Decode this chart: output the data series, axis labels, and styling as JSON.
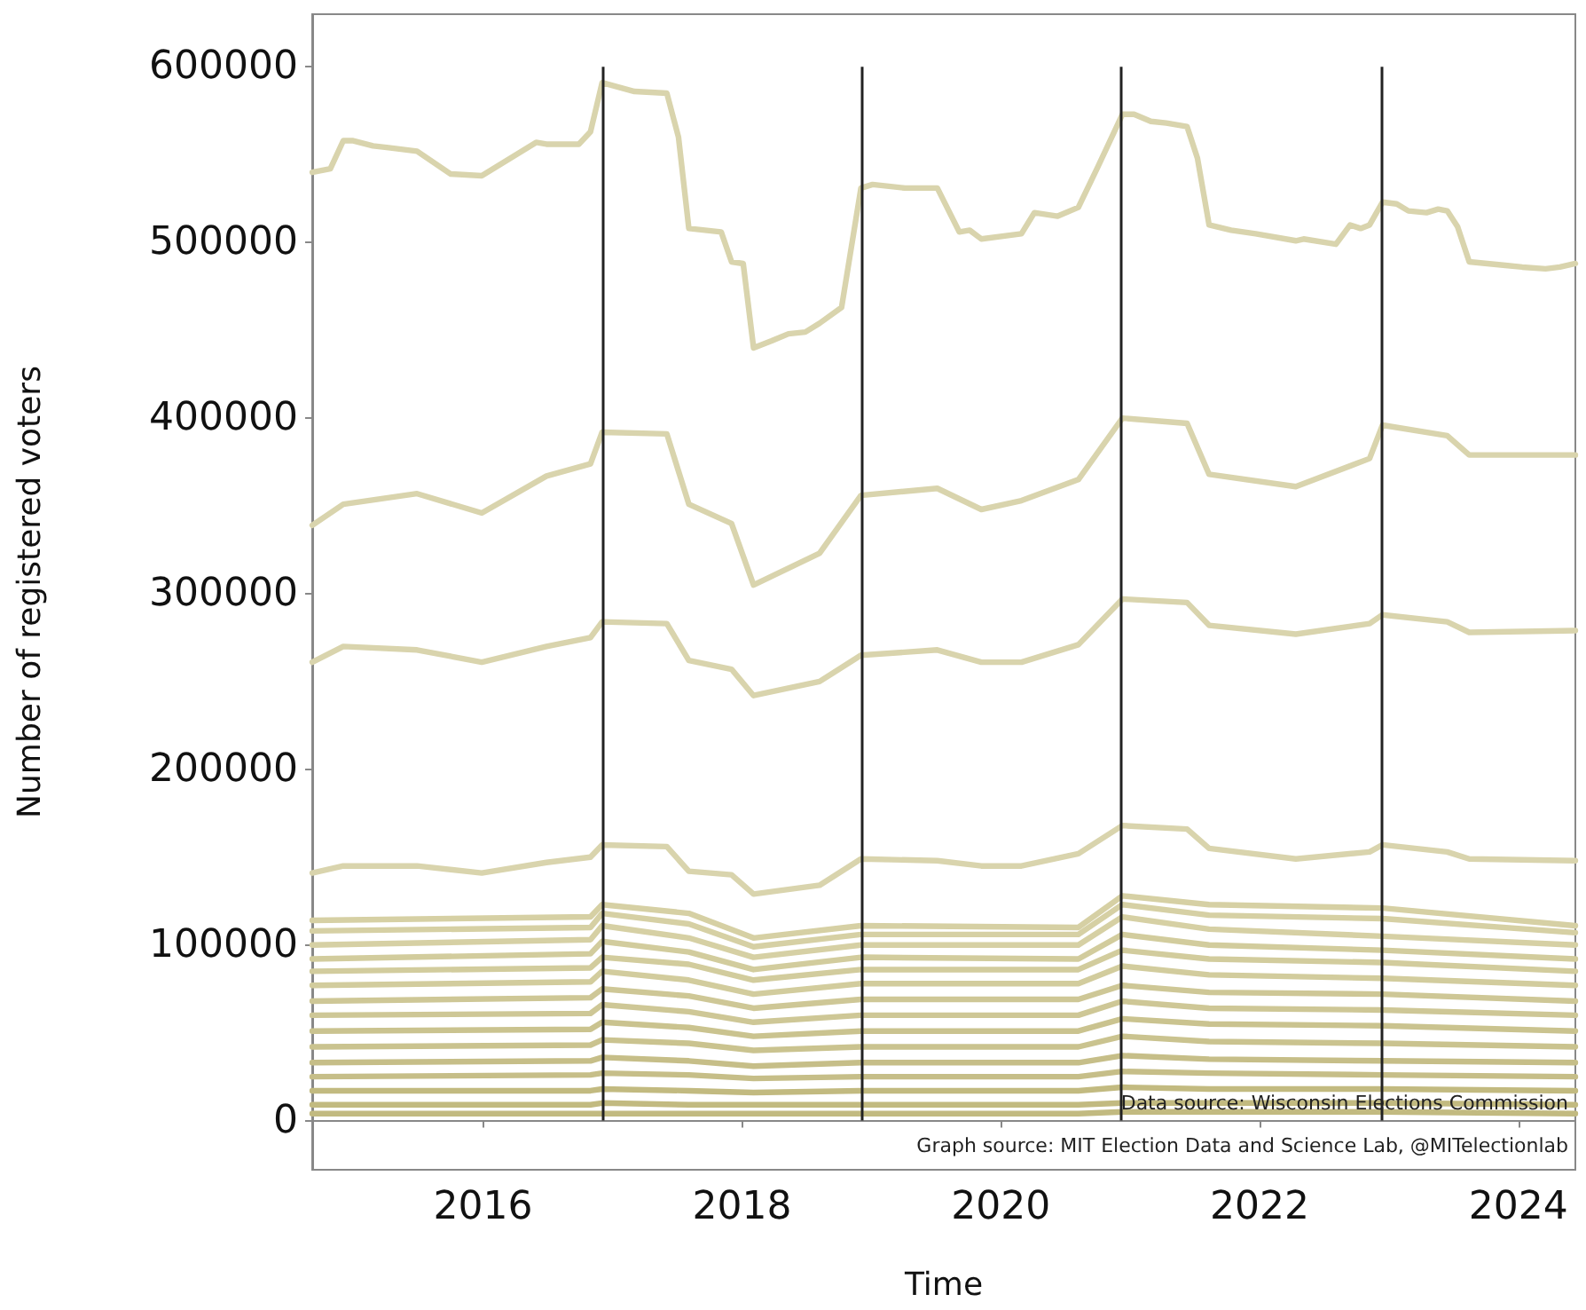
{
  "chart_data": {
    "type": "line",
    "xlabel": "Time",
    "ylabel": "Number of registered voters",
    "annotations": [
      "Data source: Wisconsin Elections Commission",
      "Graph source: MIT Election Data and Science Lab, @MITelectionlab"
    ],
    "x": [
      2014.68,
      2014.92,
      2015.49,
      2015.99,
      2016.49,
      2016.83,
      2016.92,
      2017.42,
      2017.59,
      2017.92,
      2018.09,
      2018.6,
      2018.92,
      2019.51,
      2019.85,
      2020.16,
      2020.6,
      2020.94,
      2021.44,
      2021.61,
      2022.28,
      2022.85,
      2022.95,
      2023.45,
      2023.62,
      2024.44
    ],
    "xlim": [
      2014.68,
      2024.44
    ],
    "xticks": [
      2016,
      2018,
      2020,
      2022,
      2024
    ],
    "ylim": [
      -28000,
      630000
    ],
    "yticks": [
      0,
      100000,
      200000,
      300000,
      400000,
      500000,
      600000
    ],
    "marker": "none",
    "line_style": "solid",
    "ref_lines": [
      {
        "axis": "x",
        "value": 2016.92,
        "color": "#222222"
      },
      {
        "axis": "x",
        "value": 2018.93,
        "color": "#222222"
      },
      {
        "axis": "x",
        "value": 2020.93,
        "color": "#222222"
      },
      {
        "axis": "x",
        "value": 2022.94,
        "color": "#222222"
      }
    ],
    "series": [
      {
        "color": "#d9d4ad",
        "x": [
          2014.68,
          2014.82,
          2014.92,
          2014.99,
          2015.15,
          2015.27,
          2015.49,
          2015.75,
          2015.99,
          2016.41,
          2016.49,
          2016.74,
          2016.83,
          2016.92,
          2017.17,
          2017.42,
          2017.51,
          2017.59,
          2017.84,
          2017.92,
          2018.01,
          2018.09,
          2018.23,
          2018.36,
          2018.49,
          2018.6,
          2018.77,
          2018.92,
          2019.01,
          2019.26,
          2019.51,
          2019.68,
          2019.76,
          2019.85,
          2020.16,
          2020.26,
          2020.44,
          2020.6,
          2020.75,
          2020.94,
          2021.03,
          2021.16,
          2021.28,
          2021.44,
          2021.52,
          2021.61,
          2021.78,
          2021.97,
          2022.28,
          2022.34,
          2022.59,
          2022.7,
          2022.78,
          2022.85,
          2022.95,
          2023.06,
          2023.15,
          2023.29,
          2023.38,
          2023.45,
          2023.53,
          2023.62,
          2023.9,
          2024.03,
          2024.21,
          2024.32,
          2024.44
        ],
        "values": [
          540000,
          542000,
          558000,
          558000,
          555000,
          554000,
          552000,
          539000,
          538000,
          557000,
          556000,
          556000,
          563000,
          591000,
          586000,
          585000,
          560000,
          508000,
          506000,
          489000,
          488000,
          440000,
          444000,
          448000,
          449000,
          454000,
          463000,
          531000,
          533000,
          531000,
          531000,
          506000,
          507000,
          502000,
          505000,
          517000,
          515000,
          520000,
          543000,
          573000,
          573000,
          569000,
          568000,
          566000,
          548000,
          510000,
          507000,
          505000,
          501000,
          502000,
          499000,
          510000,
          508000,
          510000,
          523000,
          522000,
          518000,
          517000,
          519000,
          518000,
          509000,
          489000,
          487000,
          486000,
          485000,
          486000,
          488000
        ]
      },
      {
        "color": "#d9d4ad",
        "values": [
          339000,
          351000,
          357000,
          346000,
          367000,
          374000,
          392000,
          391000,
          351000,
          340000,
          305000,
          323000,
          356000,
          360000,
          348000,
          353000,
          365000,
          400000,
          397000,
          368000,
          361000,
          377000,
          396000,
          390000,
          379000,
          379000
        ]
      },
      {
        "color": "#d9d4ad",
        "values": [
          261000,
          270000,
          268000,
          261000,
          270000,
          275000,
          284000,
          283000,
          262000,
          257000,
          242000,
          250000,
          265000,
          268000,
          261000,
          261000,
          271000,
          297000,
          295000,
          282000,
          277000,
          283000,
          288000,
          284000,
          278000,
          279000
        ]
      },
      {
        "color": "#d9d4ad",
        "values": [
          141000,
          145000,
          145000,
          141000,
          147000,
          150000,
          157000,
          156000,
          142000,
          140000,
          129000,
          134000,
          149000,
          148000,
          145000,
          145000,
          152000,
          168000,
          166000,
          155000,
          149000,
          153000,
          157000,
          153000,
          149000,
          148000
        ]
      },
      {
        "color": "#d6d0a4",
        "x": [
          2014.68,
          2016.83,
          2016.92,
          2017.59,
          2018.09,
          2018.92,
          2020.6,
          2020.94,
          2021.61,
          2022.95,
          2024.44
        ],
        "values": [
          114000,
          116000,
          123000,
          118000,
          104000,
          111000,
          110000,
          128000,
          123000,
          121000,
          111000
        ]
      },
      {
        "color": "#d6d0a4",
        "x": [
          2014.68,
          2016.83,
          2016.92,
          2017.59,
          2018.09,
          2018.92,
          2020.6,
          2020.94,
          2021.61,
          2022.95,
          2024.44
        ],
        "values": [
          108000,
          110000,
          118000,
          112000,
          99000,
          106000,
          106000,
          123000,
          117000,
          115000,
          107000
        ]
      },
      {
        "color": "#d6d0a4",
        "x": [
          2014.68,
          2016.83,
          2016.92,
          2017.59,
          2018.09,
          2018.92,
          2020.6,
          2020.94,
          2021.61,
          2022.95,
          2024.44
        ],
        "values": [
          100000,
          103000,
          111000,
          104000,
          93000,
          100000,
          100000,
          116000,
          109000,
          105000,
          100000
        ]
      },
      {
        "color": "#d2cc9d",
        "x": [
          2014.68,
          2016.83,
          2016.92,
          2017.59,
          2018.09,
          2018.92,
          2020.6,
          2020.94,
          2021.61,
          2022.95,
          2024.44
        ],
        "values": [
          92000,
          95000,
          102000,
          96000,
          86000,
          93000,
          92000,
          106000,
          100000,
          97000,
          92000
        ]
      },
      {
        "color": "#d2cc9d",
        "x": [
          2014.68,
          2016.83,
          2016.92,
          2017.59,
          2018.09,
          2018.92,
          2020.6,
          2020.94,
          2021.61,
          2022.95,
          2024.44
        ],
        "values": [
          85000,
          87000,
          93000,
          89000,
          80000,
          86000,
          86000,
          97000,
          92000,
          90000,
          85000
        ]
      },
      {
        "color": "#d2cc9d",
        "x": [
          2014.68,
          2016.83,
          2016.92,
          2017.59,
          2018.09,
          2018.92,
          2020.6,
          2020.94,
          2021.61,
          2022.95,
          2024.44
        ],
        "values": [
          77000,
          79000,
          85000,
          80000,
          72000,
          78000,
          78000,
          88000,
          83000,
          81000,
          77000
        ]
      },
      {
        "color": "#cec796",
        "x": [
          2014.68,
          2016.83,
          2016.92,
          2017.59,
          2018.09,
          2018.92,
          2020.6,
          2020.94,
          2021.61,
          2022.95,
          2024.44
        ],
        "values": [
          68000,
          70000,
          75000,
          71000,
          64000,
          69000,
          69000,
          77000,
          73000,
          72000,
          68000
        ]
      },
      {
        "color": "#cec796",
        "x": [
          2014.68,
          2016.83,
          2016.92,
          2017.59,
          2018.09,
          2018.92,
          2020.6,
          2020.94,
          2021.61,
          2022.95,
          2024.44
        ],
        "values": [
          60000,
          61000,
          66000,
          62000,
          56000,
          60000,
          60000,
          68000,
          64000,
          63000,
          60000
        ]
      },
      {
        "color": "#cac38f",
        "x": [
          2014.68,
          2016.83,
          2016.92,
          2017.59,
          2018.09,
          2018.92,
          2020.6,
          2020.94,
          2021.61,
          2022.95,
          2024.44
        ],
        "values": [
          51000,
          52000,
          56000,
          53000,
          48000,
          51000,
          51000,
          58000,
          55000,
          54000,
          51000
        ]
      },
      {
        "color": "#cac38f",
        "x": [
          2014.68,
          2016.83,
          2016.92,
          2017.59,
          2018.09,
          2018.92,
          2020.6,
          2020.94,
          2021.61,
          2022.95,
          2024.44
        ],
        "values": [
          42000,
          43000,
          46000,
          44000,
          40000,
          42000,
          42000,
          48000,
          45000,
          44000,
          42000
        ]
      },
      {
        "color": "#c6be88",
        "x": [
          2014.68,
          2016.83,
          2016.92,
          2017.59,
          2018.09,
          2018.92,
          2020.6,
          2020.94,
          2021.61,
          2022.95,
          2024.44
        ],
        "values": [
          33000,
          34000,
          36000,
          34000,
          31000,
          33000,
          33000,
          37000,
          35000,
          34000,
          33000
        ]
      },
      {
        "color": "#c6be88",
        "x": [
          2014.68,
          2016.83,
          2016.92,
          2017.59,
          2018.09,
          2018.92,
          2020.6,
          2020.94,
          2021.61,
          2022.95,
          2024.44
        ],
        "values": [
          25000,
          26000,
          27000,
          26000,
          24000,
          25000,
          25000,
          28000,
          27000,
          26000,
          25000
        ]
      },
      {
        "color": "#c2ba80",
        "x": [
          2014.68,
          2016.83,
          2016.92,
          2017.59,
          2018.09,
          2018.92,
          2020.6,
          2020.94,
          2021.61,
          2022.95,
          2024.44
        ],
        "values": [
          17000,
          17000,
          18000,
          17000,
          16000,
          17000,
          17000,
          19000,
          18000,
          18000,
          17000
        ]
      },
      {
        "color": "#c2ba80",
        "x": [
          2014.68,
          2016.83,
          2016.92,
          2017.59,
          2018.09,
          2018.92,
          2020.6,
          2020.94,
          2021.61,
          2022.95,
          2024.44
        ],
        "values": [
          9000,
          9000,
          10000,
          9000,
          9000,
          9000,
          9000,
          10000,
          10000,
          10000,
          9000
        ]
      },
      {
        "color": "#c2ba80",
        "x": [
          2014.68,
          2016.83,
          2016.92,
          2017.59,
          2018.09,
          2018.92,
          2020.6,
          2020.94,
          2021.61,
          2022.95,
          2024.44
        ],
        "values": [
          4000,
          4000,
          4000,
          4000,
          4000,
          4000,
          4000,
          5000,
          5000,
          5000,
          4000
        ]
      }
    ]
  }
}
